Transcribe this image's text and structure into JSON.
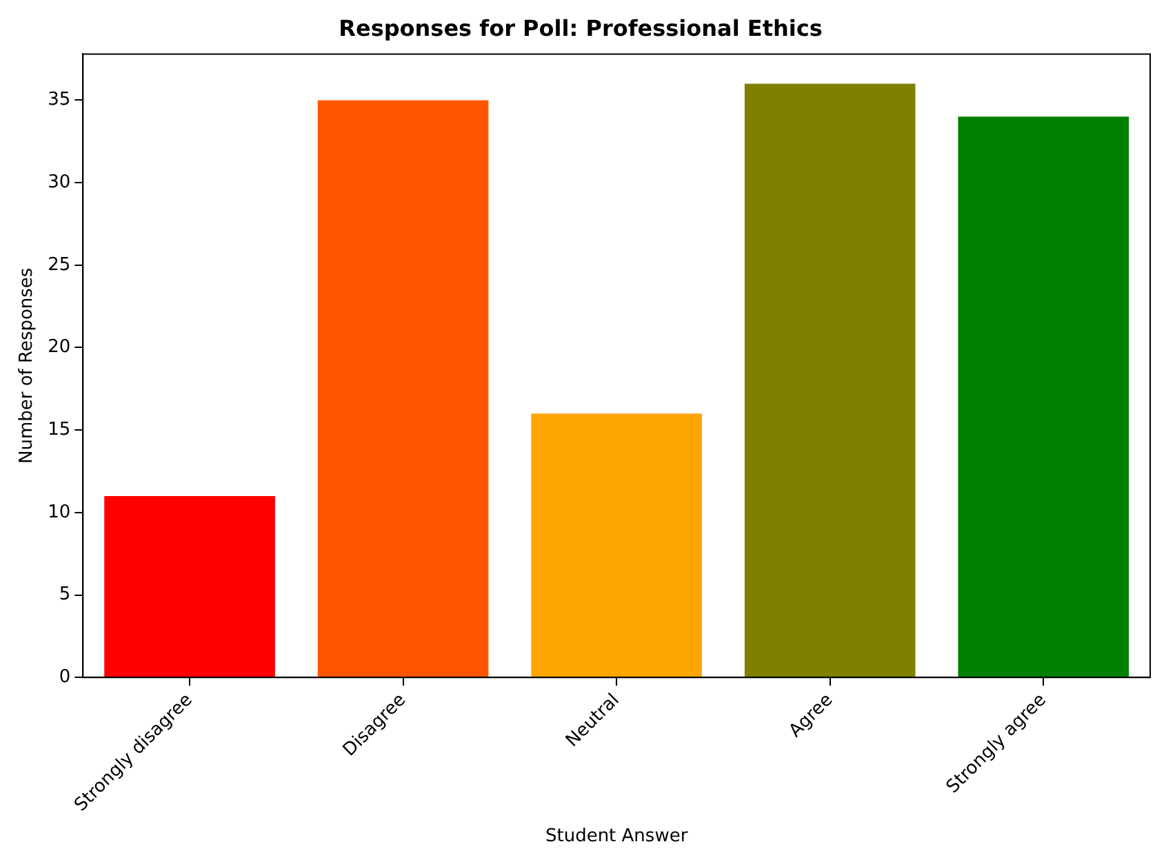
{
  "chart_data": {
    "type": "bar",
    "title": "Responses for Poll: Professional Ethics",
    "xlabel": "Student Answer",
    "ylabel": "Number of Responses",
    "categories": [
      "Strongly disagree",
      "Disagree",
      "Neutral",
      "Agree",
      "Strongly agree"
    ],
    "values": [
      11,
      35,
      16,
      36,
      34
    ],
    "colors": [
      "#ff0000",
      "#ff5500",
      "#ffa500",
      "#808000",
      "#008000"
    ],
    "ylim": [
      0,
      37.8
    ],
    "yticks": [
      0,
      5,
      10,
      15,
      20,
      25,
      30,
      35
    ],
    "grid": false,
    "legend": false
  }
}
